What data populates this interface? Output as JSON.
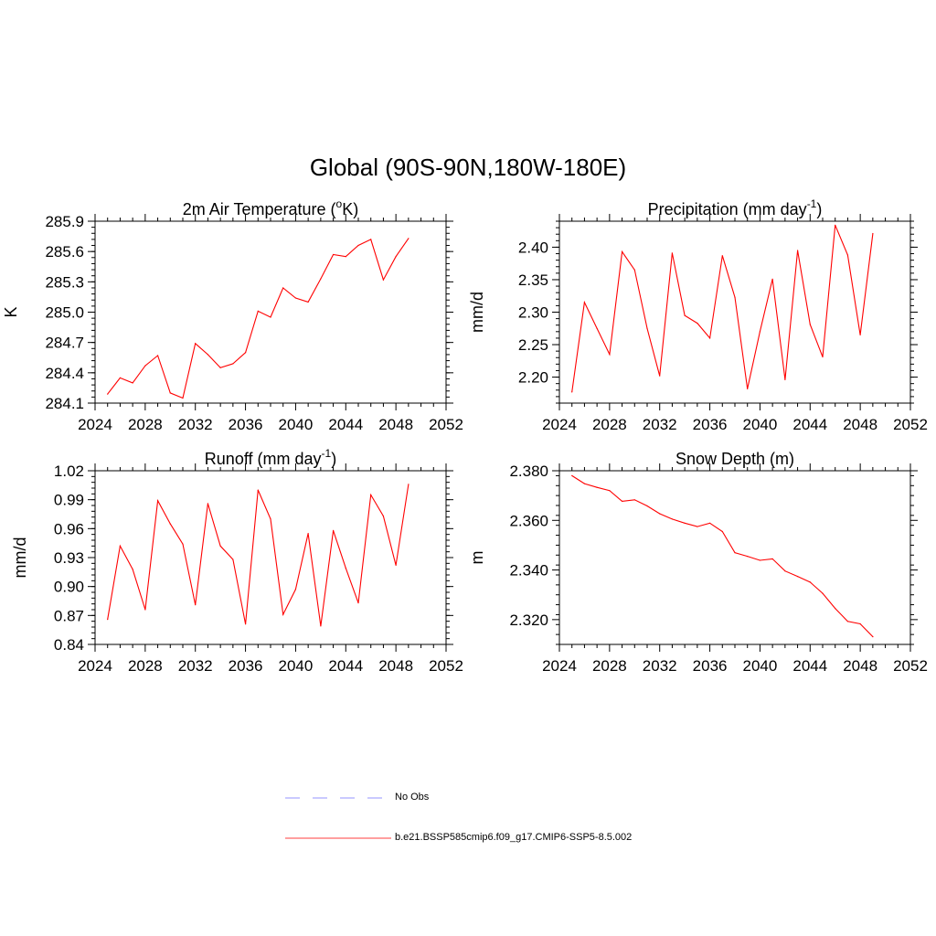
{
  "figure": {
    "title": "Global (90S-90N,180W-180E)"
  },
  "colors": {
    "model_line": "#ff0000",
    "obs_line": "#aaaaff",
    "axis": "#000000"
  },
  "legend": {
    "items": [
      {
        "label": "No Obs",
        "style": "dashed",
        "color": "#aaaaff"
      },
      {
        "label": "b.e21.BSSP585cmip6.f09_g17.CMIP6-SSP5-8.5.002",
        "style": "solid",
        "color": "#ff6666"
      }
    ]
  },
  "chart_data": [
    {
      "type": "line",
      "title": "2m Air Temperature (",
      "title_sup": "o",
      "title_suffix": "K)",
      "title_tail": "",
      "ylabel": "K",
      "xlabel": "",
      "xlim": [
        2024,
        2052
      ],
      "xticks": [
        2024,
        2028,
        2032,
        2036,
        2040,
        2044,
        2048,
        2052
      ],
      "ylim": [
        284.1,
        285.9
      ],
      "yticks": [
        "284.1",
        "284.4",
        "284.7",
        "285.0",
        "285.3",
        "285.6",
        "285.9"
      ],
      "x": [
        2025,
        2026,
        2027,
        2028,
        2029,
        2030,
        2031,
        2032,
        2033,
        2034,
        2035,
        2036,
        2037,
        2038,
        2039,
        2040,
        2041,
        2042,
        2043,
        2044,
        2045,
        2046,
        2047,
        2048,
        2049
      ],
      "series": [
        {
          "name": "b.e21.BSSP585cmip6.f09_g17.CMIP6-SSP5-8.5.002",
          "values": [
            284.19,
            284.35,
            284.3,
            284.47,
            284.57,
            284.2,
            284.15,
            284.69,
            284.58,
            284.45,
            284.49,
            284.6,
            285.01,
            284.95,
            285.24,
            285.14,
            285.1,
            285.33,
            285.57,
            285.55,
            285.66,
            285.72,
            285.32,
            285.55,
            285.73
          ]
        }
      ]
    },
    {
      "type": "line",
      "title": "Precipitation (mm day",
      "title_sup": "-1",
      "title_suffix": ")",
      "ylabel": "mm/d",
      "xlabel": "",
      "xlim": [
        2024,
        2052
      ],
      "xticks": [
        2024,
        2028,
        2032,
        2036,
        2040,
        2044,
        2048,
        2052
      ],
      "ylim": [
        2.16,
        2.44
      ],
      "yticks": [
        "2.20",
        "2.25",
        "2.30",
        "2.35",
        "2.40"
      ],
      "x": [
        2025,
        2026,
        2027,
        2028,
        2029,
        2030,
        2031,
        2032,
        2033,
        2034,
        2035,
        2036,
        2037,
        2038,
        2039,
        2040,
        2041,
        2042,
        2043,
        2044,
        2045,
        2046,
        2047,
        2048,
        2049
      ],
      "series": [
        {
          "name": "b.e21.BSSP585cmip6.f09_g17.CMIP6-SSP5-8.5.002",
          "values": [
            2.177,
            2.315,
            2.275,
            2.235,
            2.393,
            2.365,
            2.275,
            2.202,
            2.391,
            2.295,
            2.283,
            2.26,
            2.387,
            2.323,
            2.182,
            2.27,
            2.351,
            2.196,
            2.395,
            2.281,
            2.231,
            2.434,
            2.388,
            2.265,
            2.421
          ]
        }
      ]
    },
    {
      "type": "line",
      "title": "Runoff (mm day",
      "title_sup": "-1",
      "title_suffix": ")",
      "ylabel": "mm/d",
      "xlabel": "",
      "xlim": [
        2024,
        2052
      ],
      "xticks": [
        2024,
        2028,
        2032,
        2036,
        2040,
        2044,
        2048,
        2052
      ],
      "ylim": [
        0.84,
        1.02
      ],
      "yticks": [
        "0.84",
        "0.87",
        "0.90",
        "0.93",
        "0.96",
        "0.99",
        "1.02"
      ],
      "x": [
        2025,
        2026,
        2027,
        2028,
        2029,
        2030,
        2031,
        2032,
        2033,
        2034,
        2035,
        2036,
        2037,
        2038,
        2039,
        2040,
        2041,
        2042,
        2043,
        2044,
        2045,
        2046,
        2047,
        2048,
        2049
      ],
      "series": [
        {
          "name": "b.e21.BSSP585cmip6.f09_g17.CMIP6-SSP5-8.5.002",
          "values": [
            0.866,
            0.942,
            0.918,
            0.876,
            0.989,
            0.965,
            0.944,
            0.881,
            0.986,
            0.942,
            0.928,
            0.861,
            1.0,
            0.97,
            0.871,
            0.897,
            0.955,
            0.859,
            0.958,
            0.919,
            0.883,
            0.995,
            0.973,
            0.922,
            1.006
          ]
        }
      ]
    },
    {
      "type": "line",
      "title": "Snow Depth (m)",
      "title_sup": "",
      "title_suffix": "",
      "ylabel": "m",
      "xlabel": "",
      "xlim": [
        2024,
        2052
      ],
      "xticks": [
        2024,
        2028,
        2032,
        2036,
        2040,
        2044,
        2048,
        2052
      ],
      "ylim": [
        2.31,
        2.38
      ],
      "yticks": [
        "2.320",
        "2.340",
        "2.360",
        "2.380"
      ],
      "x": [
        2025,
        2026,
        2027,
        2028,
        2029,
        2030,
        2031,
        2032,
        2033,
        2034,
        2035,
        2036,
        2037,
        2038,
        2039,
        2040,
        2041,
        2042,
        2043,
        2044,
        2045,
        2046,
        2047,
        2048,
        2049
      ],
      "series": [
        {
          "name": "b.e21.BSSP585cmip6.f09_g17.CMIP6-SSP5-8.5.002",
          "values": [
            2.378,
            2.3748,
            2.3733,
            2.372,
            2.3677,
            2.3683,
            2.3658,
            2.3627,
            2.3605,
            2.3589,
            2.3575,
            2.3589,
            2.3555,
            2.347,
            2.3455,
            2.3439,
            2.3445,
            2.3396,
            2.3374,
            2.3351,
            2.3306,
            2.3245,
            2.3193,
            2.3183,
            2.3131
          ]
        }
      ]
    }
  ]
}
